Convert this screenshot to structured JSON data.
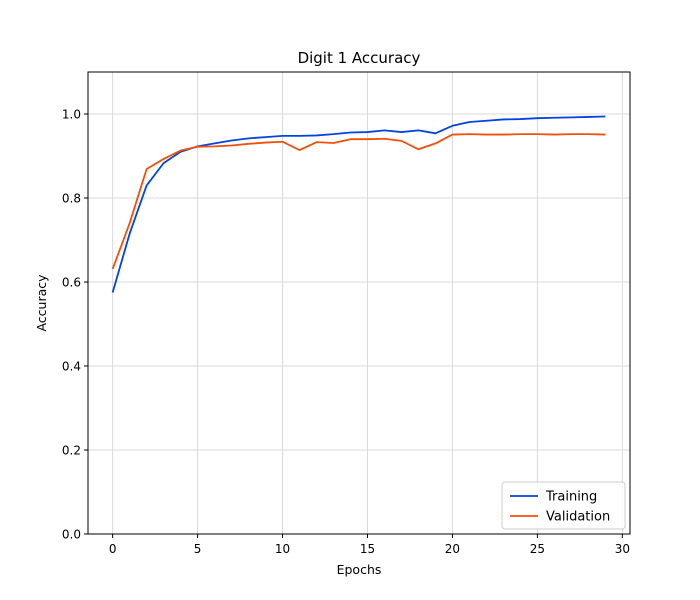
{
  "chart_data": {
    "type": "line",
    "title": "Digit 1 Accuracy",
    "xlabel": "Epochs",
    "ylabel": "Accuracy",
    "xlim": [
      -1.45,
      30.45
    ],
    "ylim": [
      0,
      1.1
    ],
    "xticks": [
      0,
      5,
      10,
      15,
      20,
      25,
      30
    ],
    "yticks": [
      0.0,
      0.2,
      0.4,
      0.6,
      0.8,
      1.0
    ],
    "grid": true,
    "legend_position": "bottom-right",
    "x": [
      0,
      1,
      2,
      3,
      4,
      5,
      6,
      7,
      8,
      9,
      10,
      11,
      12,
      13,
      14,
      15,
      16,
      17,
      18,
      19,
      20,
      21,
      22,
      23,
      24,
      25,
      26,
      27,
      28,
      29
    ],
    "series": [
      {
        "name": "Training",
        "color": "#0343df",
        "values": [
          0.575,
          0.715,
          0.83,
          0.883,
          0.91,
          0.923,
          0.93,
          0.937,
          0.942,
          0.945,
          0.948,
          0.948,
          0.949,
          0.952,
          0.956,
          0.957,
          0.961,
          0.957,
          0.961,
          0.954,
          0.972,
          0.981,
          0.984,
          0.987,
          0.988,
          0.99,
          0.991,
          0.992,
          0.993,
          0.994
        ]
      },
      {
        "name": "Validation",
        "color": "#f0500a",
        "values": [
          0.631,
          0.74,
          0.869,
          0.893,
          0.913,
          0.922,
          0.923,
          0.925,
          0.929,
          0.932,
          0.934,
          0.914,
          0.933,
          0.931,
          0.94,
          0.94,
          0.941,
          0.936,
          0.916,
          0.93,
          0.951,
          0.952,
          0.951,
          0.951,
          0.952,
          0.952,
          0.951,
          0.952,
          0.952,
          0.951
        ]
      }
    ]
  }
}
